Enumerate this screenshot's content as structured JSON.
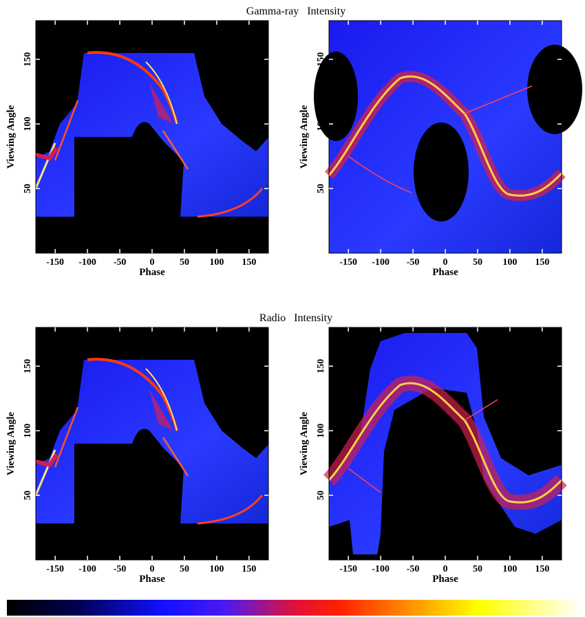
{
  "chart_data": [
    {
      "type": "heatmap",
      "title": "Gamma-ray   Intensity",
      "xlabel": "Phase",
      "ylabel": "Viewing Angle",
      "xlim": [
        -180,
        180
      ],
      "ylim": [
        0,
        180
      ],
      "xticks": [
        -150,
        -100,
        -50,
        0,
        50,
        100,
        150
      ],
      "yticks": [
        50,
        100,
        150
      ]
    },
    {
      "type": "heatmap",
      "xlabel": "Phase",
      "ylabel": "Viewing Angle",
      "xlim": [
        -180,
        180
      ],
      "ylim": [
        0,
        180
      ],
      "xticks": [
        -150,
        -100,
        -50,
        0,
        50,
        100,
        150
      ],
      "yticks": [
        50,
        100,
        150
      ]
    },
    {
      "type": "heatmap",
      "title": "Radio   Intensity",
      "xlabel": "Phase",
      "ylabel": "Viewing Angle",
      "xlim": [
        -180,
        180
      ],
      "ylim": [
        0,
        180
      ],
      "xticks": [
        -150,
        -100,
        -50,
        0,
        50,
        100,
        150
      ],
      "yticks": [
        50,
        100,
        150
      ]
    },
    {
      "type": "heatmap",
      "xlabel": "Phase",
      "ylabel": "Viewing Angle",
      "xlim": [
        -180,
        180
      ],
      "ylim": [
        0,
        180
      ],
      "xticks": [
        -150,
        -100,
        -50,
        0,
        50,
        100,
        150
      ],
      "yticks": [
        50,
        100,
        150
      ]
    }
  ]
}
